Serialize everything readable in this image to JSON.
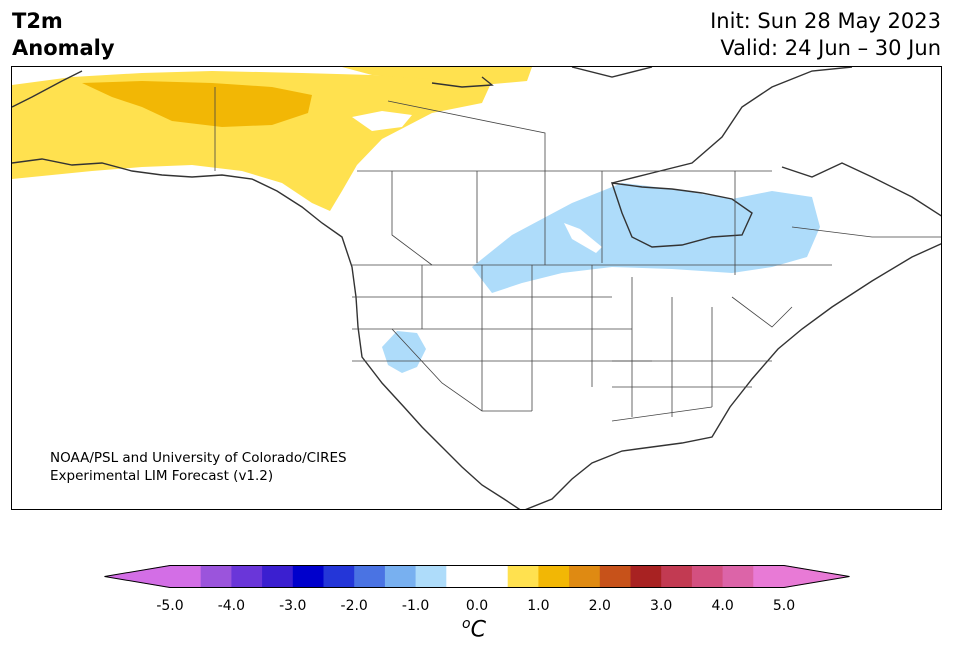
{
  "title": {
    "line1": "T2m",
    "line2": "Anomaly",
    "init": "Init: Sun 28 May 2023",
    "valid": "Valid: 24 Jun – 30 Jun"
  },
  "map": {
    "credit_line1": "NOAA/PSL and University of Colorado/CIRES",
    "credit_line2": "Experimental LIM Forecast (v1.2)",
    "region": "North America",
    "anomaly_regions": [
      {
        "area": "Alaska / Yukon / NW Canada",
        "category": "0.5 to 1.0",
        "color": "#ffe14f"
      },
      {
        "area": "Northern Alaska / Yukon core",
        "category": "1.0 to 1.5",
        "color": "#f2b705"
      },
      {
        "area": "Central Canada / Hudson Bay / Northern Plains",
        "category": "-1.0 to -0.5",
        "color": "#aedcfa"
      },
      {
        "area": "Nevada / California border",
        "category": "-1.0 to -0.5",
        "color": "#aedcfa"
      }
    ]
  },
  "colorbar": {
    "unit_base": "C",
    "unit_sup": "o",
    "colors": [
      "#d36ee6",
      "#9b54dc",
      "#6a36d9",
      "#3b1fd0",
      "#0000cc",
      "#2436d8",
      "#4a73e3",
      "#78b0f0",
      "#aedcfa",
      "#ffffff",
      "#ffffff",
      "#ffe14f",
      "#f2b705",
      "#df8a12",
      "#c7521a",
      "#a82222",
      "#c23a52",
      "#d35080",
      "#dc64a8",
      "#e87ad6"
    ],
    "low_extend": "#d36ee6",
    "high_extend": "#e87ad6",
    "ticks": [
      "-5.0",
      "-4.0",
      "-3.0",
      "-2.0",
      "-1.0",
      "0.0",
      "1.0",
      "2.0",
      "3.0",
      "4.0",
      "5.0"
    ]
  }
}
